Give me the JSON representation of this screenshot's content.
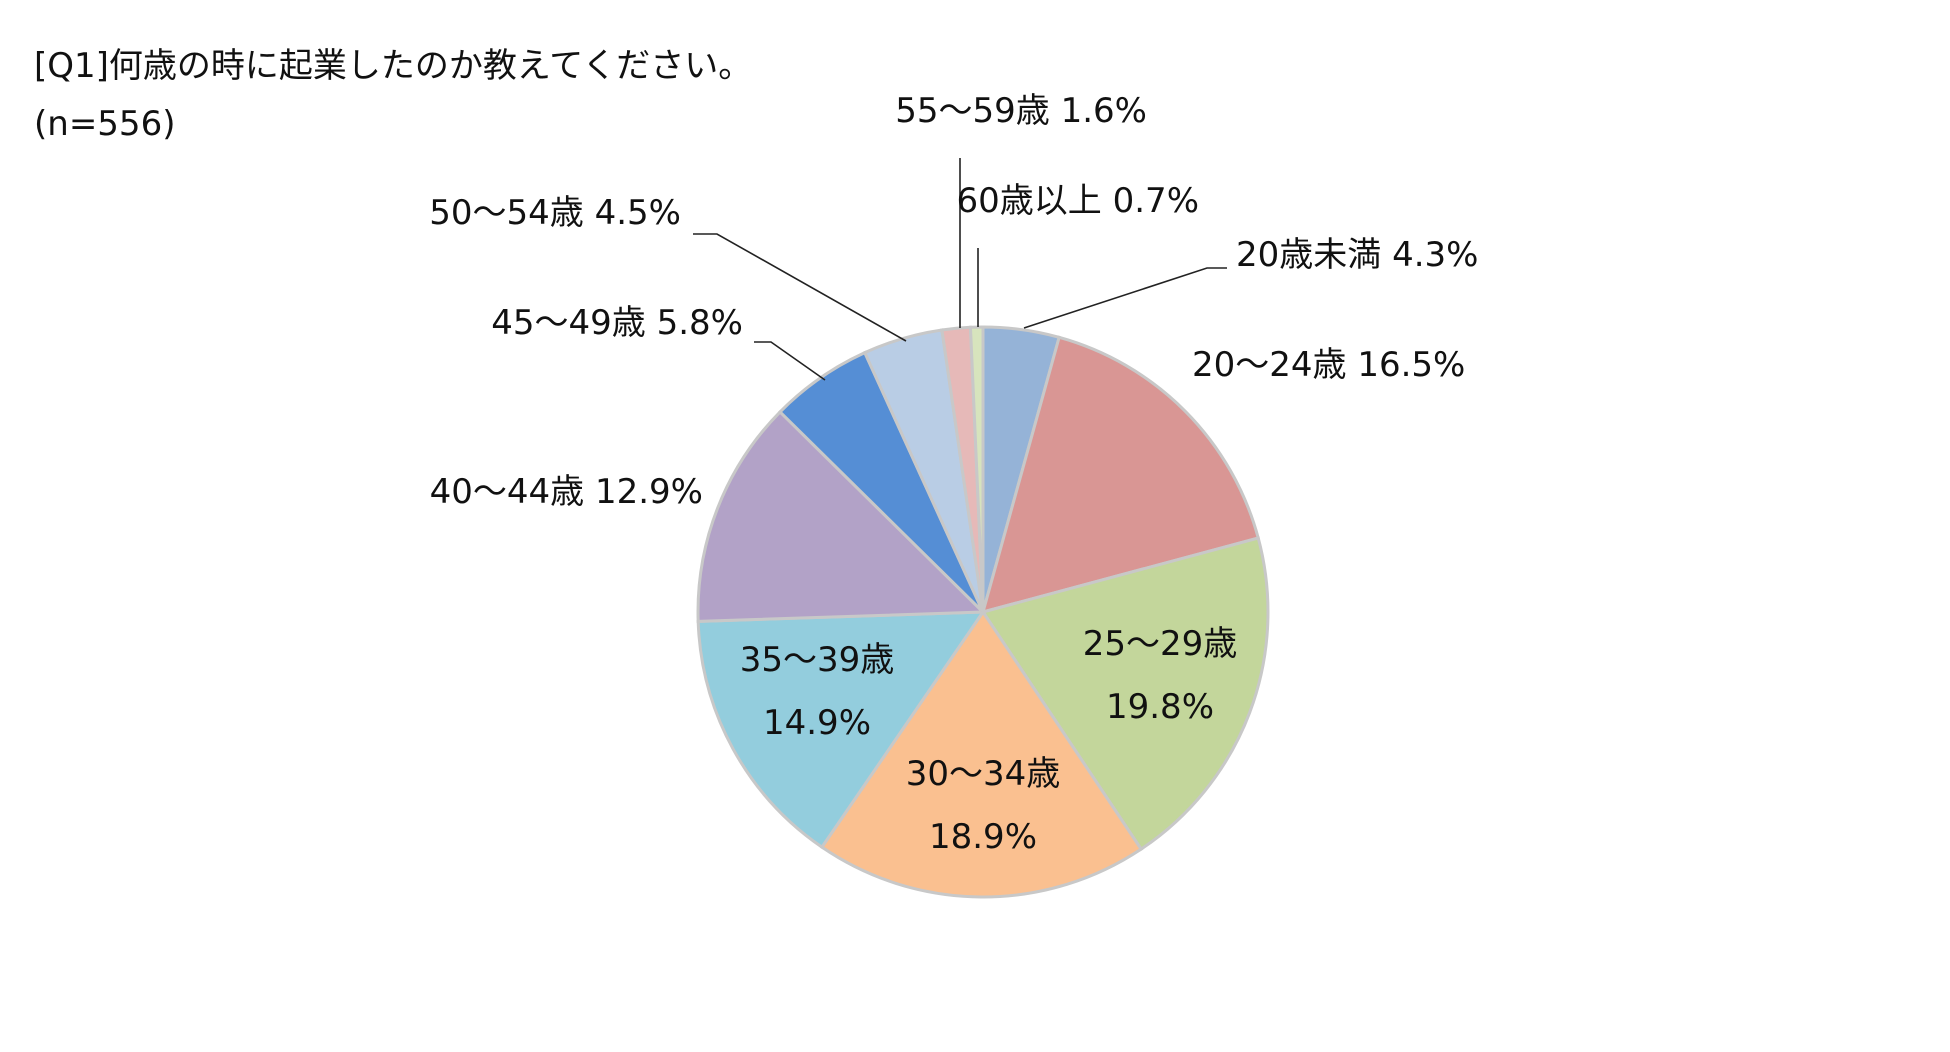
{
  "header": {
    "title": "[Q1]何歳の時に起業したのか教えてください。",
    "sample_size": "(n=556)"
  },
  "chart_data": {
    "type": "pie",
    "title": "[Q1]何歳の時に起業したのか教えてください。",
    "subtitle": "(n=556)",
    "categories": [
      "20歳未満",
      "20～24歳",
      "25～29歳",
      "30～34歳",
      "35～39歳",
      "40～44歳",
      "45～49歳",
      "50～54歳",
      "55～59歳",
      "60歳以上"
    ],
    "values": [
      4.3,
      16.5,
      19.8,
      18.9,
      14.9,
      12.9,
      5.8,
      4.5,
      1.6,
      0.7
    ],
    "value_labels": [
      "4.3%",
      "16.5%",
      "19.8%",
      "18.9%",
      "14.9%",
      "12.9%",
      "5.8%",
      "4.5%",
      "1.6%",
      "0.7%"
    ],
    "colors": [
      "#95b3d7",
      "#d99694",
      "#c3d69b",
      "#fac090",
      "#93cddd",
      "#b2a2c7",
      "#558ed5",
      "#b9cde5",
      "#e6b9b8",
      "#d7e4bd"
    ],
    "slice_border_color": "#c8c8c8",
    "start_angle": "12 o'clock",
    "direction": "clockwise",
    "legend": "none"
  }
}
